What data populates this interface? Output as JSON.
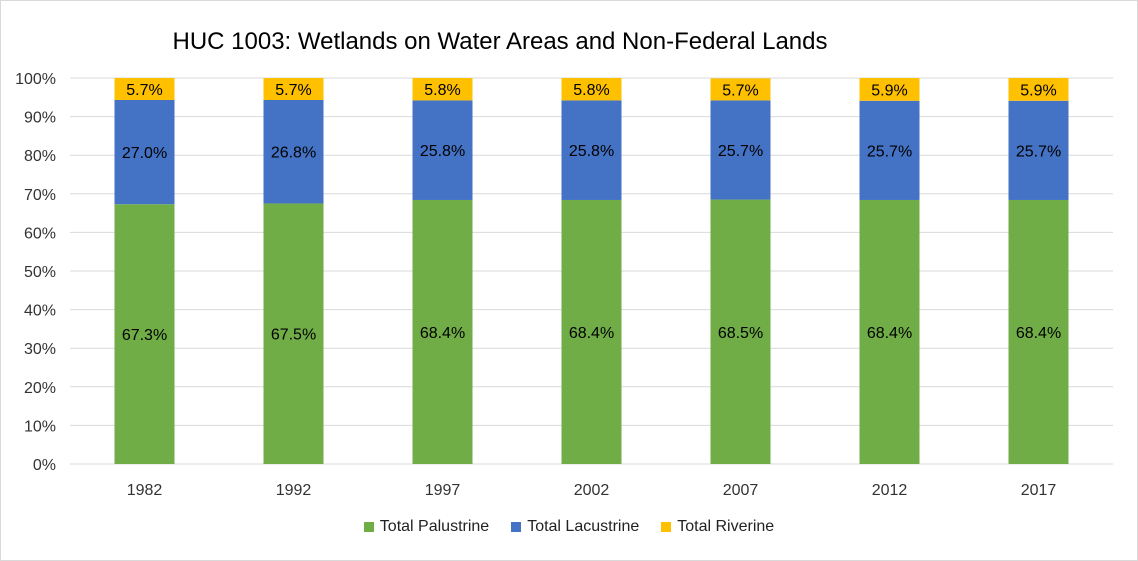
{
  "chart_data": {
    "type": "bar",
    "stacked": true,
    "title": "HUC 1003: Wetlands on Water Areas and Non-Federal Lands",
    "categories": [
      "1982",
      "1992",
      "1997",
      "2002",
      "2007",
      "2012",
      "2017"
    ],
    "series": [
      {
        "name": "Total Palustrine",
        "color": "#70ad47",
        "values": [
          67.3,
          67.5,
          68.4,
          68.4,
          68.5,
          68.4,
          68.4
        ]
      },
      {
        "name": "Total Lacustrine",
        "color": "#4472c4",
        "values": [
          27.0,
          26.8,
          25.8,
          25.8,
          25.7,
          25.7,
          25.7
        ]
      },
      {
        "name": "Total Riverine",
        "color": "#ffc000",
        "values": [
          5.7,
          5.7,
          5.8,
          5.8,
          5.7,
          5.9,
          5.9
        ]
      }
    ],
    "ylim": [
      0,
      100
    ],
    "yticks": [
      "0%",
      "10%",
      "20%",
      "30%",
      "40%",
      "50%",
      "60%",
      "70%",
      "80%",
      "90%",
      "100%"
    ],
    "grid": true,
    "legend": "bottom"
  }
}
